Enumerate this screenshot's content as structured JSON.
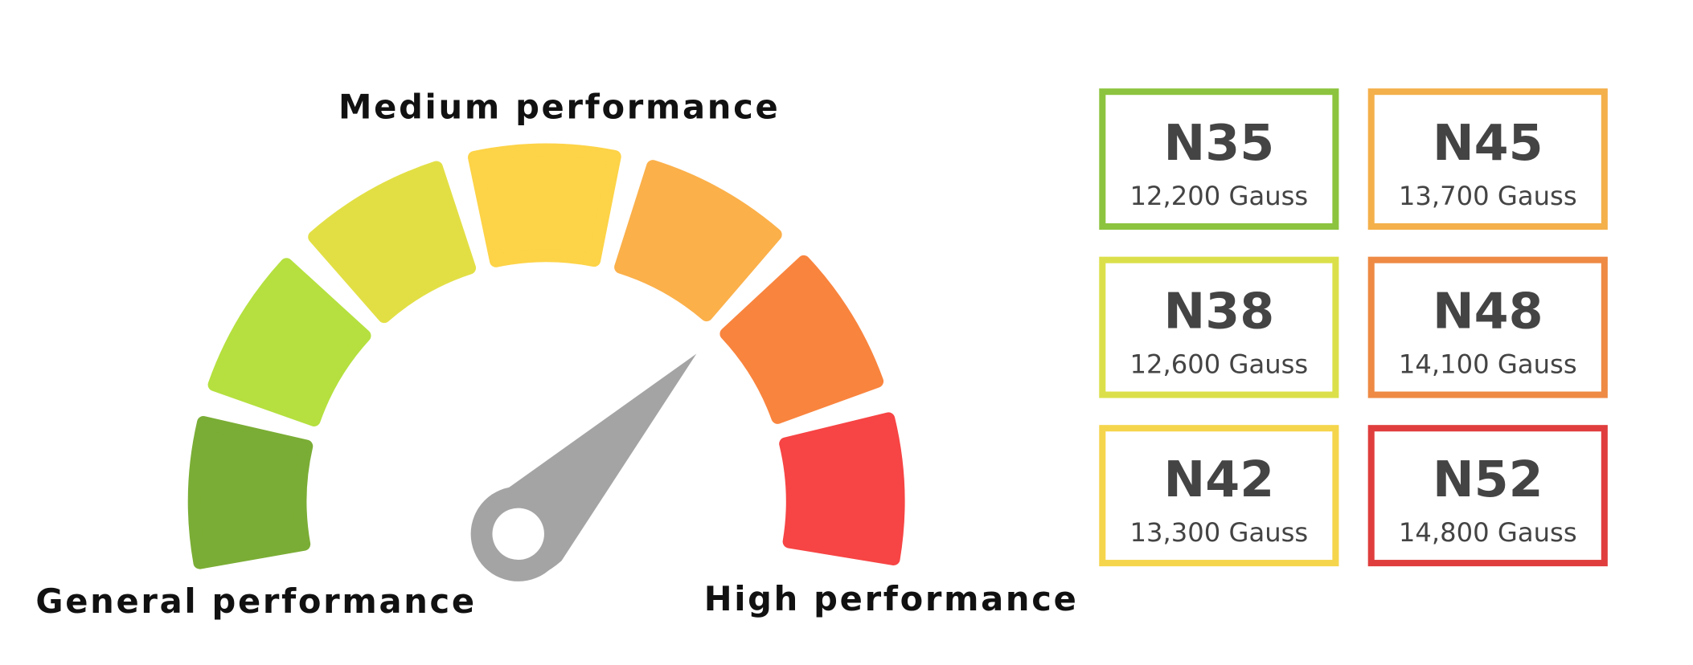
{
  "gauge": {
    "labels": {
      "medium": "Medium performance",
      "general": "General performance",
      "high": "High performance"
    }
  },
  "cards": [
    {
      "grade": "N35",
      "gauss": "12,200 Gauss"
    },
    {
      "grade": "N45",
      "gauss": "13,700 Gauss"
    },
    {
      "grade": "N38",
      "gauss": "12,600 Gauss"
    },
    {
      "grade": "N48",
      "gauss": "14,100 Gauss"
    },
    {
      "grade": "N42",
      "gauss": "13,300 Gauss"
    },
    {
      "grade": "N52",
      "gauss": "14,800 Gauss"
    }
  ]
}
